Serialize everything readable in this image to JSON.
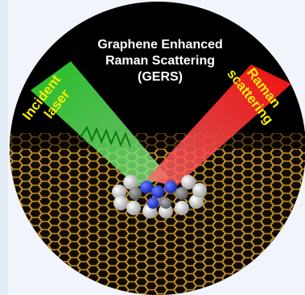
{
  "title": {
    "line1": "Graphene Enhanced",
    "line2": "Raman Scattering",
    "line3": "(GERS)"
  },
  "incident": {
    "line1": "Incident",
    "line2": "laser"
  },
  "raman": {
    "line1": "Raman",
    "line2": "scattering"
  },
  "colors": {
    "background": "#000000",
    "incident_beam": "#2fd12f",
    "raman_beam": "#ff1a1a",
    "graphene": "#c8962a",
    "label": "#f3f000",
    "title": "#ffffff"
  }
}
